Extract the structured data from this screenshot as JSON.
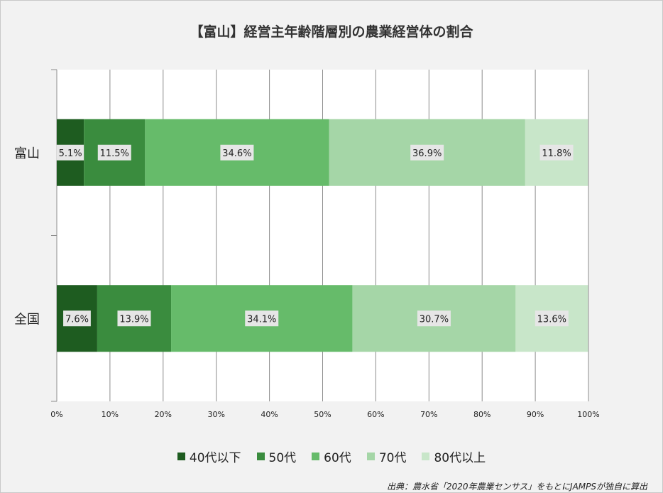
{
  "title": "【富山】経営主年齢階層別の農業経営体の割合",
  "source": "出典：農水省「2020年農業センサス」をもとにJAMPSが独自に算出",
  "colors": {
    "plot_bg": "#ffffff",
    "frame_bg": "#f2f2f2",
    "gridline": "#8c8c8c",
    "label_bg": "#e6e6e6"
  },
  "chart_data": {
    "type": "bar",
    "orientation": "horizontal",
    "stacked": true,
    "categories": [
      "富山",
      "全国"
    ],
    "series": [
      {
        "name": "40代以下",
        "color": "#1e5c20",
        "values": [
          5.1,
          7.6
        ],
        "labels": [
          "5.1%",
          "7.6%"
        ]
      },
      {
        "name": "50代",
        "color": "#3a8c3e",
        "values": [
          11.5,
          13.9
        ],
        "labels": [
          "11.5%",
          "13.9%"
        ]
      },
      {
        "name": "60代",
        "color": "#66bb6a",
        "values": [
          34.6,
          34.1
        ],
        "labels": [
          "34.6%",
          "34.1%"
        ]
      },
      {
        "name": "70代",
        "color": "#a5d6a7",
        "values": [
          36.9,
          30.7
        ],
        "labels": [
          "36.9%",
          "30.7%"
        ]
      },
      {
        "name": "80代以上",
        "color": "#c8e6c9",
        "values": [
          11.8,
          13.6
        ],
        "labels": [
          "11.8%",
          "13.6%"
        ]
      }
    ],
    "xlim": [
      0,
      100
    ],
    "xticks": [
      "0%",
      "10%",
      "20%",
      "30%",
      "40%",
      "50%",
      "60%",
      "70%",
      "80%",
      "90%",
      "100%"
    ],
    "grid": true,
    "legend_position": "bottom"
  }
}
